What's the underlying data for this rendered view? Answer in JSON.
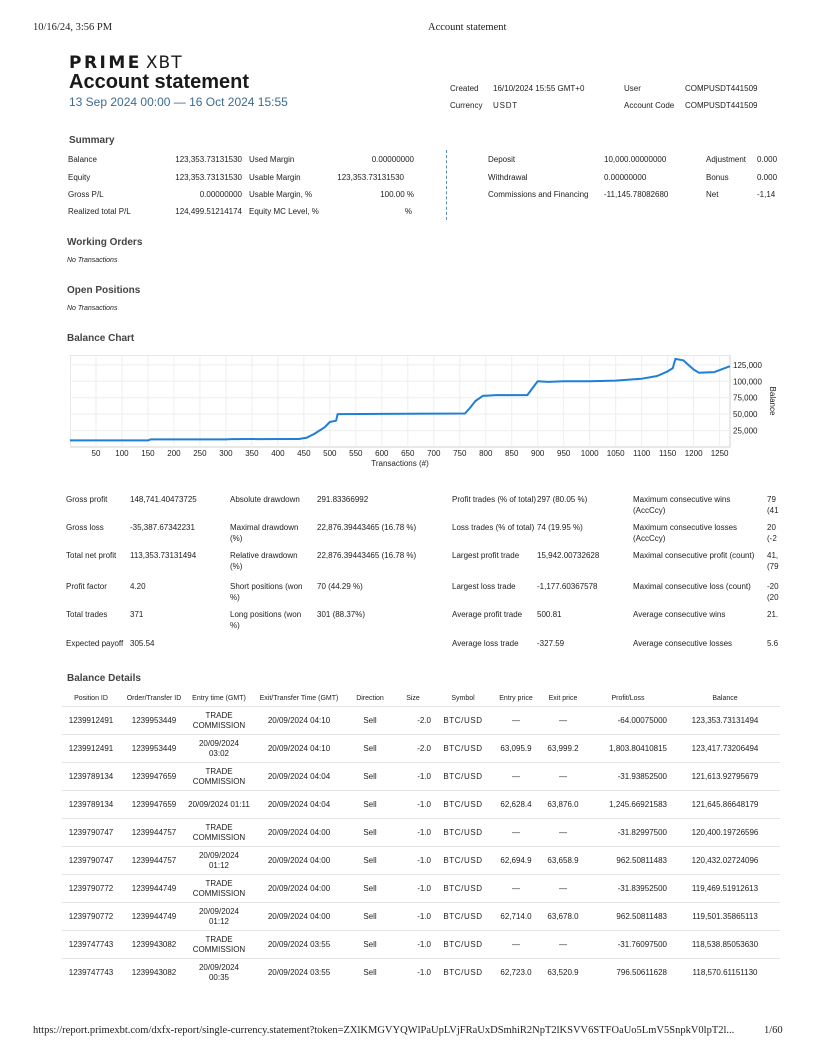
{
  "print_header": {
    "datetime": "10/16/24, 3:56 PM",
    "doc_title": "Account statement"
  },
  "print_footer": {
    "url": "https://report.primexbt.com/dxfx-report/single-currency.statement?token=ZXlKMGVYQWlPaUpLVjFRaUxDSmhiR2NpT2lKSVV6STFOaUo5LmV5SnpkV0lpT2l...",
    "page": "1/60"
  },
  "brand": {
    "logo_main": "PRIME",
    "logo_sub": "XBT"
  },
  "header": {
    "title": "Account statement",
    "date_range": "13 Sep 2024 00:00 — 16 Oct 2024 15:55",
    "created_label": "Created",
    "created_value": "16/10/2024 15:55 GMT+0",
    "currency_label": "Currency",
    "currency_value": "USDT",
    "user_label": "User",
    "user_value": "COMPUSDT441509",
    "account_code_label": "Account Code",
    "account_code_value": "COMPUSDT441509"
  },
  "summary": {
    "heading": "Summary",
    "col1": [
      {
        "label": "Balance",
        "value": "123,353.73131530"
      },
      {
        "label": "Equity",
        "value": "123,353.73131530"
      },
      {
        "label": "Gross P/L",
        "value": "0.00000000"
      },
      {
        "label": "Realized total P/L",
        "value": "124,499.51214174"
      }
    ],
    "col2": [
      {
        "label": "Used Margin",
        "value": "0.00000000"
      },
      {
        "label": "Usable Margin",
        "value": "123,353.73131530"
      },
      {
        "label": "Usable Margin, %",
        "value": "100.00 %"
      },
      {
        "label": "Equity MC Level, %",
        "value": "%"
      }
    ],
    "col3": [
      {
        "label": "Deposit",
        "value": "10,000.00000000"
      },
      {
        "label": "Withdrawal",
        "value": "0.00000000"
      },
      {
        "label": "Commissions and Financing",
        "value": "-11,145.78082680"
      }
    ],
    "col4": [
      {
        "label": "Adjustment",
        "value": "0.000"
      },
      {
        "label": "Bonus",
        "value": "0.000"
      },
      {
        "label": "Net",
        "value": "-1,14"
      }
    ]
  },
  "working_orders": {
    "heading": "Working Orders",
    "empty": "No Transactions"
  },
  "open_positions": {
    "heading": "Open Positions",
    "empty": "No Transactions"
  },
  "balance_chart": {
    "heading": "Balance Chart"
  },
  "chart_data": {
    "type": "line",
    "xlabel": "Transactions (#)",
    "ylabel": "Balance",
    "xlim": [
      0,
      1270
    ],
    "ylim": [
      0,
      140000
    ],
    "x_ticks": [
      50,
      100,
      150,
      200,
      250,
      300,
      350,
      400,
      450,
      500,
      550,
      600,
      650,
      700,
      750,
      800,
      850,
      900,
      950,
      1000,
      1050,
      1100,
      1150,
      1200,
      1250
    ],
    "y_ticks": [
      25000,
      50000,
      75000,
      100000,
      125000
    ],
    "y_tick_labels": [
      "25,000",
      "50,000",
      "75,000",
      "100,000",
      "125,000"
    ],
    "grid": true,
    "color": "#1e7fd8",
    "series": [
      {
        "x": [
          0,
          150,
          155,
          300,
          310,
          430,
          440,
          455,
          470,
          490,
          500,
          512,
          515,
          520,
          760,
          770,
          780,
          795,
          800,
          820,
          850,
          880,
          895,
          900,
          920,
          950,
          1000,
          1050,
          1100,
          1130,
          1150,
          1160,
          1165,
          1180,
          1190,
          1200,
          1210,
          1240,
          1270
        ],
        "y": [
          10000,
          10000,
          11500,
          11500,
          12000,
          12200,
          12200,
          14000,
          20000,
          30000,
          38000,
          40000,
          50000,
          50000,
          51000,
          60000,
          70000,
          78000,
          78000,
          79000,
          79000,
          79000,
          95000,
          100000,
          99000,
          100000,
          100000,
          101000,
          104000,
          108000,
          115000,
          120000,
          134000,
          132000,
          125000,
          118000,
          113000,
          114000,
          123000
        ]
      }
    ]
  },
  "stats": {
    "col1": [
      {
        "label": "Gross profit",
        "value": "148,741.40473725"
      },
      {
        "label": "Gross loss",
        "value": "-35,387.67342231"
      },
      {
        "label": "Total net profit",
        "value": "113,353.73131494"
      },
      {
        "label": "Profit factor",
        "value": "4.20"
      },
      {
        "label": "Total trades",
        "value": "371"
      },
      {
        "label": "Expected payoff",
        "value": "305.54"
      }
    ],
    "col2": [
      {
        "label": "Absolute drawdown",
        "value": "291.83366992"
      },
      {
        "label": "Maximal drawdown (%)",
        "value": "22,876.39443465 (16.78 %)"
      },
      {
        "label": "Relative drawdown (%)",
        "value": "22,876.39443465 (16.78 %)"
      },
      {
        "label": "Short positions (won %)",
        "value": "70 (44.29 %)"
      },
      {
        "label": "Long positions (won %)",
        "value": "301 (88.37%)"
      }
    ],
    "col3": [
      {
        "label": "Profit trades (% of total)",
        "value": "297 (80.05 %)"
      },
      {
        "label": "Loss trades (% of total)",
        "value": "74 (19.95 %)"
      },
      {
        "label": "Largest profit trade",
        "value": "15,942.00732628"
      },
      {
        "label": "Largest loss trade",
        "value": "-1,177.60367578"
      },
      {
        "label": "Average profit trade",
        "value": "500.81"
      },
      {
        "label": "Average loss trade",
        "value": "-327.59"
      }
    ],
    "col4": [
      {
        "label": "Maximum consecutive wins (AccCcy)",
        "value": "79 (41"
      },
      {
        "label": "Maximum consecutive losses (AccCcy)",
        "value": "20 (-2"
      },
      {
        "label": "Maximal consecutive profit (count)",
        "value": "41, (79"
      },
      {
        "label": "Maximal consecutive loss (count)",
        "value": "-20 (20"
      },
      {
        "label": "Average consecutive wins",
        "value": "21."
      },
      {
        "label": "Average consecutive losses",
        "value": "5.6"
      }
    ]
  },
  "balance_details": {
    "heading": "Balance Details",
    "columns": [
      "Position ID",
      "Order/Transfer ID",
      "Entry time (GMT)",
      "Exit/Transfer Time (GMT)",
      "Direction",
      "Size",
      "Symbol",
      "Entry price",
      "Exit price",
      "Profit/Loss",
      "Balance"
    ],
    "rows": [
      [
        "1239912491",
        "1239953449",
        "TRADE COMMISSION",
        "20/09/2024 04:10",
        "Sell",
        "-2.0",
        "BTC/USD",
        "—",
        "—",
        "-64.00075000",
        "123,353.73131494"
      ],
      [
        "1239912491",
        "1239953449",
        "20/09/2024 03:02",
        "20/09/2024 04:10",
        "Sell",
        "-2.0",
        "BTC/USD",
        "63,095.9",
        "63,999.2",
        "1,803.80410815",
        "123,417.73206494"
      ],
      [
        "1239789134",
        "1239947659",
        "TRADE COMMISSION",
        "20/09/2024 04:04",
        "Sell",
        "-1.0",
        "BTC/USD",
        "—",
        "—",
        "-31.93852500",
        "121,613.92795679"
      ],
      [
        "1239789134",
        "1239947659",
        "20/09/2024 01:11",
        "20/09/2024 04:04",
        "Sell",
        "-1.0",
        "BTC/USD",
        "62,628.4",
        "63,876.0",
        "1,245.66921583",
        "121,645.86648179"
      ],
      [
        "1239790747",
        "1239944757",
        "TRADE COMMISSION",
        "20/09/2024 04:00",
        "Sell",
        "-1.0",
        "BTC/USD",
        "—",
        "—",
        "-31.82997500",
        "120,400.19726596"
      ],
      [
        "1239790747",
        "1239944757",
        "20/09/2024 01:12",
        "20/09/2024 04:00",
        "Sell",
        "-1.0",
        "BTC/USD",
        "62,694.9",
        "63,658.9",
        "962.50811483",
        "120,432.02724096"
      ],
      [
        "1239790772",
        "1239944749",
        "TRADE COMMISSION",
        "20/09/2024 04:00",
        "Sell",
        "-1.0",
        "BTC/USD",
        "—",
        "—",
        "-31.83952500",
        "119,469.51912613"
      ],
      [
        "1239790772",
        "1239944749",
        "20/09/2024 01:12",
        "20/09/2024 04:00",
        "Sell",
        "-1.0",
        "BTC/USD",
        "62,714.0",
        "63,678.0",
        "962.50811483",
        "119,501.35865113"
      ],
      [
        "1239747743",
        "1239943082",
        "TRADE COMMISSION",
        "20/09/2024 03:55",
        "Sell",
        "-1.0",
        "BTC/USD",
        "—",
        "—",
        "-31.76097500",
        "118,538.85053630"
      ],
      [
        "1239747743",
        "1239943082",
        "20/09/2024 00:35",
        "20/09/2024 03:55",
        "Sell",
        "-1.0",
        "BTC/USD",
        "62,723.0",
        "63,520.9",
        "796.50611628",
        "118,570.61151130"
      ]
    ]
  }
}
